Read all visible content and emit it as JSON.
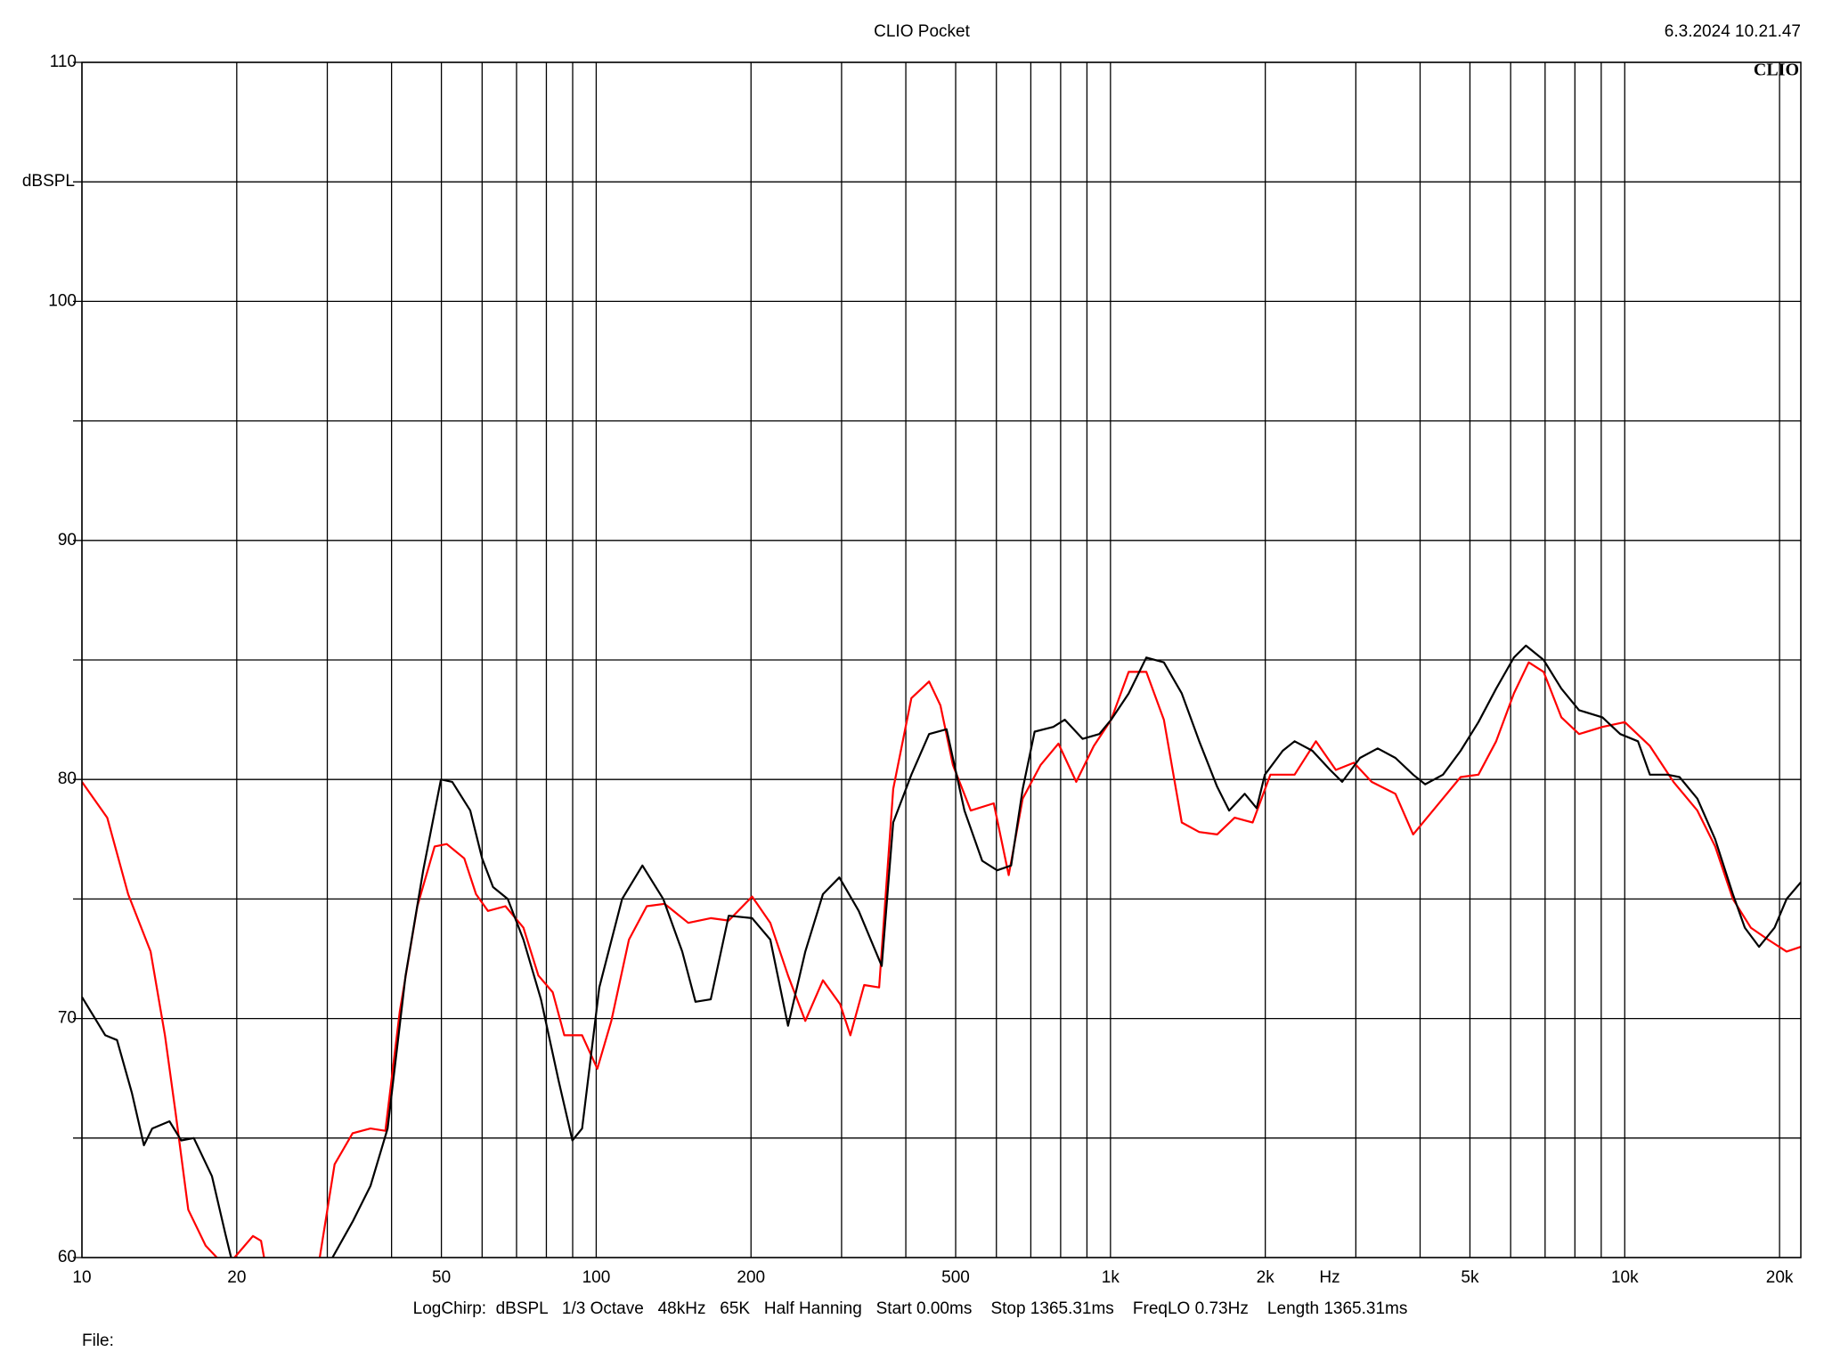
{
  "chart_data": {
    "type": "line",
    "title": "CLIO Pocket",
    "timestamp": "6.3.2024 10.21.47",
    "logo": "CLIO",
    "y_label": "dBSPL",
    "x_label": "Hz",
    "footer": "LogChirp:  dBSPL   1/3 Octave   48kHz   65K   Half Hanning   Start 0.00ms    Stop 1365.31ms    FreqLO 0.73Hz    Length 1365.31ms",
    "file_label": "File:",
    "xscale": "log",
    "xlim": [
      10,
      22000
    ],
    "ylim": [
      60,
      110
    ],
    "xticks": [
      10,
      20,
      50,
      100,
      200,
      500,
      {
        "value": 1000,
        "label": "1k"
      },
      {
        "value": 2000,
        "label": "2k"
      },
      {
        "value": 5000,
        "label": "5k"
      },
      {
        "value": 10000,
        "label": "10k"
      },
      {
        "value": 20000,
        "label": "20k"
      }
    ],
    "minor_xticks": [
      30,
      40,
      60,
      70,
      80,
      90,
      300,
      400,
      600,
      700,
      800,
      900,
      3000,
      4000,
      6000,
      7000,
      8000,
      9000
    ],
    "yticks": [
      60,
      70,
      80,
      90,
      100,
      110
    ],
    "minor_yticks": [
      65,
      75,
      85,
      95,
      105
    ],
    "grid": true,
    "series": [
      {
        "color": "#000000",
        "x": [
          10,
          11.1,
          11.7,
          12.5,
          13.2,
          13.7,
          14.8,
          15.6,
          16.5,
          17.9,
          19,
          19.5,
          25,
          30.7,
          33.6,
          36.4,
          39.3,
          42.6,
          46.1,
          49.9,
          52.5,
          56.9,
          60,
          63,
          67.3,
          72.2,
          78.1,
          84.5,
          89.9,
          93.9,
          101.4,
          112.3,
          123,
          135,
          147,
          156,
          167,
          181,
          201,
          218,
          236,
          255,
          276,
          297,
          324,
          359,
          378,
          410,
          444,
          480,
          520,
          563,
          602,
          641,
          675,
          712,
          774,
          815,
          883,
          951,
          1003,
          1085,
          1174,
          1270,
          1376,
          1488,
          1612,
          1701,
          1824,
          1924,
          1996,
          2162,
          2281,
          2470,
          2674,
          2822,
          3056,
          3308,
          3582,
          3878,
          4092,
          4431,
          4796,
          5193,
          5622,
          6087,
          6423,
          6954,
          7528,
          8150,
          9050,
          9800,
          10610,
          11190,
          12110,
          12780,
          13840,
          14990,
          16230,
          17120,
          18250,
          19560,
          20640,
          22000
        ],
        "values": [
          70.9,
          69.3,
          69.1,
          66.9,
          64.7,
          65.4,
          65.7,
          64.9,
          65,
          63.4,
          61,
          60,
          null,
          60,
          61.5,
          63,
          65.4,
          71.8,
          76.2,
          80,
          79.9,
          78.7,
          76.7,
          75.5,
          75,
          73.3,
          70.8,
          67.4,
          64.9,
          65.4,
          71.3,
          75,
          76.4,
          75,
          72.8,
          70.7,
          70.8,
          74.3,
          74.2,
          73.3,
          69.7,
          72.8,
          75.2,
          75.9,
          74.5,
          72.2,
          78.2,
          80.2,
          81.9,
          82.1,
          78.7,
          76.6,
          76.2,
          76.4,
          79.6,
          82,
          82.2,
          82.5,
          81.7,
          81.9,
          82.5,
          83.6,
          85.1,
          84.9,
          83.6,
          81.6,
          79.7,
          78.7,
          79.4,
          78.8,
          80.2,
          81.2,
          81.6,
          81.2,
          80.4,
          79.9,
          80.9,
          81.3,
          80.9,
          80.2,
          79.8,
          80.2,
          81.2,
          82.4,
          83.8,
          85.1,
          85.6,
          85,
          83.8,
          82.9,
          82.6,
          81.9,
          81.6,
          80.2,
          80.2,
          80.1,
          79.2,
          77.5,
          75.2,
          73.8,
          73,
          73.8,
          75,
          75.7
        ]
      },
      {
        "color": "#ff0000",
        "x": [
          10,
          11.2,
          12.3,
          13.6,
          14.5,
          15.2,
          16.1,
          17.4,
          18.3,
          19,
          19.8,
          21.5,
          22.3,
          22.6,
          26,
          29,
          31,
          33.6,
          36.4,
          38.9,
          41.5,
          44.9,
          48.5,
          51.2,
          55.4,
          58.4,
          61.6,
          66.6,
          72.2,
          77.2,
          82.3,
          86.7,
          93.9,
          100.5,
          107,
          115.8,
          125.4,
          135.8,
          151,
          167,
          181,
          201,
          218,
          236,
          255,
          276,
          298,
          312,
          332,
          355,
          378,
          410,
          444,
          467,
          494,
          535,
          593,
          634,
          675,
          731,
          792,
          858,
          928,
          1003,
          1085,
          1174,
          1270,
          1376,
          1488,
          1612,
          1744,
          1890,
          2046,
          2281,
          2509,
          2743,
          2974,
          3220,
          3582,
          3878,
          4314,
          4796,
          5193,
          5622,
          6087,
          6506,
          6954,
          7528,
          8150,
          9050,
          10000,
          11190,
          12440,
          13840,
          14990,
          16230,
          17580,
          19000,
          20640,
          22000
        ],
        "values": [
          79.9,
          78.4,
          75.2,
          72.8,
          69.3,
          66.1,
          62,
          60.5,
          60,
          null,
          60,
          60.9,
          60.7,
          60,
          null,
          60,
          63.9,
          65.2,
          65.4,
          65.3,
          70.3,
          74.7,
          77.2,
          77.3,
          76.7,
          75.2,
          74.5,
          74.7,
          73.8,
          71.8,
          71.1,
          69.3,
          69.3,
          67.9,
          69.9,
          73.3,
          74.7,
          74.8,
          74,
          74.2,
          74.1,
          75.1,
          74,
          71.8,
          69.9,
          71.6,
          70.6,
          69.3,
          71.4,
          71.3,
          79.6,
          83.4,
          84.1,
          83.1,
          80.6,
          78.7,
          79,
          76,
          79.2,
          80.6,
          81.5,
          79.9,
          81.4,
          82.5,
          84.5,
          84.5,
          82.5,
          78.2,
          77.8,
          77.7,
          78.4,
          78.2,
          80.2,
          80.2,
          81.6,
          80.4,
          80.7,
          79.9,
          79.4,
          77.7,
          78.9,
          80.1,
          80.2,
          81.6,
          83.6,
          84.9,
          84.5,
          82.6,
          81.9,
          82.2,
          82.4,
          81.4,
          79.9,
          78.7,
          77.2,
          75,
          73.8,
          73.3,
          72.8,
          73
        ]
      }
    ]
  }
}
